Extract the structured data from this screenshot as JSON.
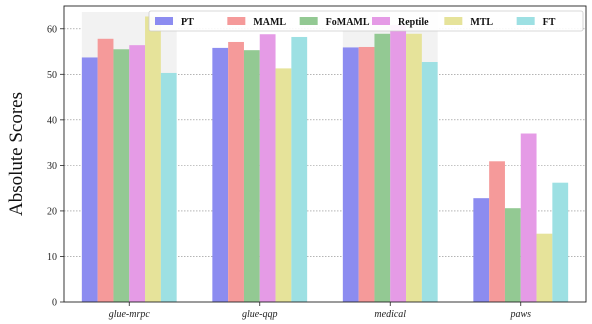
{
  "chart_data": {
    "type": "bar",
    "title": "",
    "xlabel": "",
    "ylabel": "Absolute Scores",
    "ylim": [
      0,
      65
    ],
    "yticks": [
      0,
      10,
      20,
      30,
      40,
      50,
      60
    ],
    "grid": true,
    "legend_position": "top",
    "categories": [
      "glue-mrpc",
      "glue-qqp",
      "medical",
      "paws"
    ],
    "series": [
      {
        "name": "PT",
        "color": "#8c8cf0",
        "values": [
          53.7,
          55.8,
          55.9,
          22.8
        ]
      },
      {
        "name": "MAML",
        "color": "#f59a9a",
        "values": [
          57.8,
          57.1,
          56.0,
          30.9
        ]
      },
      {
        "name": "FoMAML",
        "color": "#93c993",
        "values": [
          55.5,
          55.3,
          58.9,
          20.6
        ]
      },
      {
        "name": "Reptile",
        "color": "#e59be6",
        "values": [
          56.4,
          58.8,
          60.8,
          37.0
        ]
      },
      {
        "name": "MTL",
        "color": "#e6e39a",
        "values": [
          62.7,
          51.3,
          58.9,
          15.0
        ]
      },
      {
        "name": "FT",
        "color": "#9de0e3",
        "values": [
          50.3,
          58.2,
          52.7,
          26.2
        ]
      }
    ]
  }
}
